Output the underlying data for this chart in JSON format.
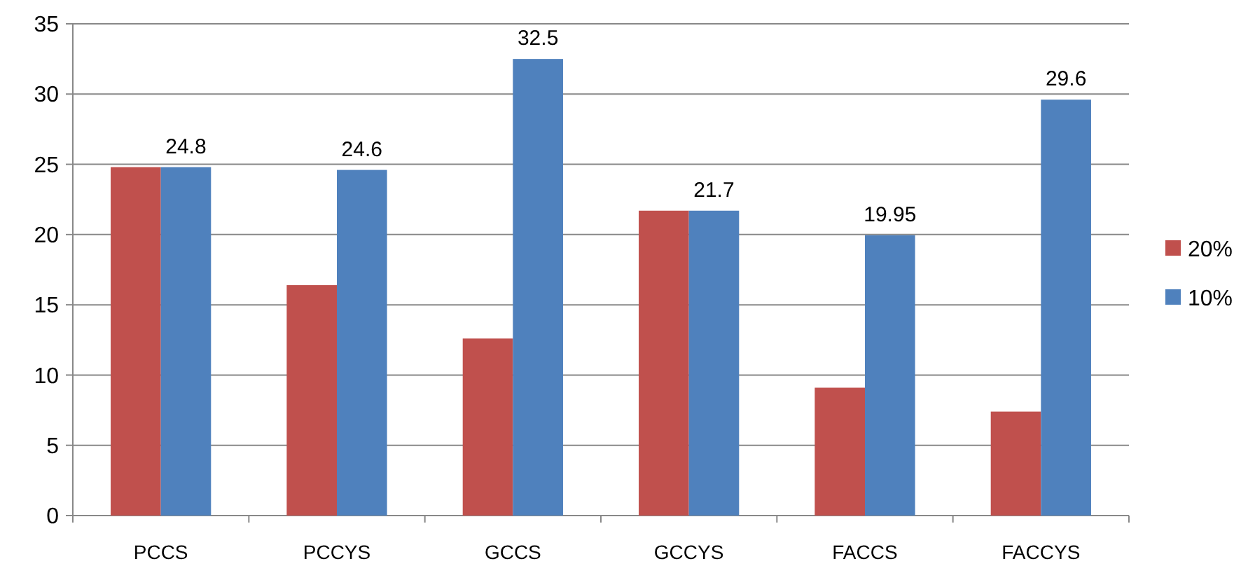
{
  "chart_data": {
    "type": "bar",
    "categories": [
      "PCCS",
      "PCCYS",
      "GCCS",
      "GCCYS",
      "FACCS",
      "FACCYS"
    ],
    "series": [
      {
        "name": "20%",
        "color": "#c0504d",
        "values": [
          24.8,
          16.4,
          12.6,
          21.7,
          9.1,
          7.4
        ]
      },
      {
        "name": "10%",
        "color": "#4f81bd",
        "values": [
          24.8,
          24.6,
          32.5,
          21.7,
          19.95,
          29.6
        ],
        "value_labels": [
          "24.8",
          "24.6",
          "32.5",
          "21.7",
          "19.95",
          "29.6"
        ]
      }
    ],
    "ylim": [
      0,
      35
    ],
    "yticks": [
      0,
      5,
      10,
      15,
      20,
      25,
      30,
      35
    ],
    "grid": "y",
    "legend": "right"
  }
}
